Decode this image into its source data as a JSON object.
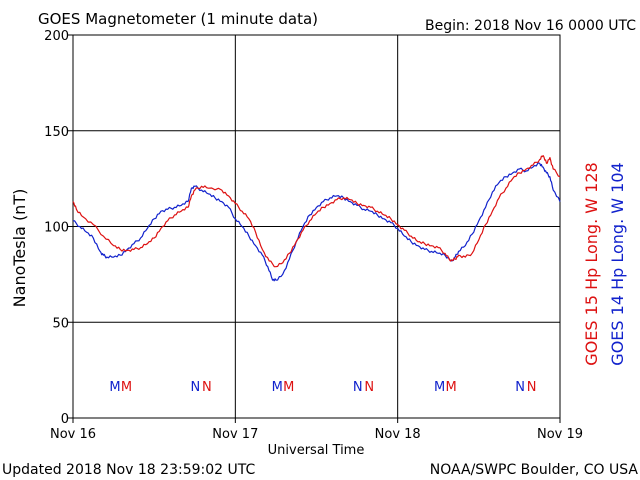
{
  "header": {
    "title": "GOES Magnetometer (1 minute data)",
    "begin": "Begin:  2018 Nov 16 0000 UTC"
  },
  "footer": {
    "updated": "Updated 2018 Nov 18 23:59:02 UTC",
    "credit": "NOAA/SWPC Boulder, CO USA"
  },
  "colors": {
    "goes15": "#dd1111",
    "goes14": "#1122cc",
    "grid": "#000000"
  },
  "chart_data": {
    "type": "line",
    "xlabel": "Universal Time",
    "ylabel": "NanoTesla (nT)",
    "xlim": [
      0,
      72
    ],
    "ylim": [
      0,
      200
    ],
    "x_unit_note": "hours from 2018 Nov 16 0000 UTC",
    "x_ticks": [
      {
        "x": 0,
        "label": "Nov 16"
      },
      {
        "x": 24,
        "label": "Nov 17"
      },
      {
        "x": 48,
        "label": "Nov 18"
      },
      {
        "x": 72,
        "label": "Nov 19"
      }
    ],
    "y_ticks": [
      0,
      50,
      100,
      150,
      200
    ],
    "grid": true,
    "legend": "right-vertical",
    "series": [
      {
        "name": "GOES 15 Hp  Long. W 128",
        "color": "#dd1111",
        "markers": [
          {
            "x": 7.9,
            "label": "M"
          },
          {
            "x": 19.8,
            "label": "N"
          },
          {
            "x": 31.9,
            "label": "M"
          },
          {
            "x": 43.8,
            "label": "N"
          },
          {
            "x": 55.9,
            "label": "M"
          },
          {
            "x": 67.8,
            "label": "N"
          }
        ],
        "points": [
          [
            0,
            113
          ],
          [
            0.5,
            109
          ],
          [
            1.5,
            105
          ],
          [
            3,
            101
          ],
          [
            4.5,
            95
          ],
          [
            6,
            90
          ],
          [
            7,
            88
          ],
          [
            8,
            87.5
          ],
          [
            9,
            88
          ],
          [
            10,
            89
          ],
          [
            11,
            91
          ],
          [
            12,
            94
          ],
          [
            13,
            99
          ],
          [
            14,
            103
          ],
          [
            15,
            106
          ],
          [
            16,
            108
          ],
          [
            17,
            110
          ],
          [
            17.5,
            116
          ],
          [
            18,
            119
          ],
          [
            19,
            121
          ],
          [
            20,
            120
          ],
          [
            22,
            119
          ],
          [
            23,
            116
          ],
          [
            24,
            112
          ],
          [
            25,
            108
          ],
          [
            26,
            104
          ],
          [
            27,
            97
          ],
          [
            28,
            88
          ],
          [
            29,
            82
          ],
          [
            30,
            79
          ],
          [
            31,
            81
          ],
          [
            32,
            86
          ],
          [
            33,
            92
          ],
          [
            34,
            98
          ],
          [
            35,
            103
          ],
          [
            36,
            107
          ],
          [
            37,
            110
          ],
          [
            38,
            112
          ],
          [
            39,
            114
          ],
          [
            40,
            115
          ],
          [
            41,
            114
          ],
          [
            42,
            112
          ],
          [
            43,
            111
          ],
          [
            44,
            110
          ],
          [
            45,
            108
          ],
          [
            46,
            106
          ],
          [
            47,
            104
          ],
          [
            48,
            101
          ],
          [
            49,
            98
          ],
          [
            50,
            95
          ],
          [
            51,
            92
          ],
          [
            52,
            91
          ],
          [
            53,
            90
          ],
          [
            54,
            89
          ],
          [
            55,
            86
          ],
          [
            55.8,
            82
          ],
          [
            56.5,
            83
          ],
          [
            57,
            85
          ],
          [
            58,
            84
          ],
          [
            59,
            86
          ],
          [
            60,
            93
          ],
          [
            61,
            101
          ],
          [
            62,
            108
          ],
          [
            63,
            115
          ],
          [
            64,
            120
          ],
          [
            65,
            125
          ],
          [
            66,
            128
          ],
          [
            67,
            130
          ],
          [
            68,
            132
          ],
          [
            69,
            135
          ],
          [
            69.5,
            137
          ],
          [
            70,
            133
          ],
          [
            70.5,
            136
          ],
          [
            71,
            130
          ],
          [
            72,
            126
          ]
        ]
      },
      {
        "name": "GOES 14 Hp  Long. W 104",
        "color": "#1122cc",
        "markers": [
          {
            "x": 6.2,
            "label": "M"
          },
          {
            "x": 18.1,
            "label": "N"
          },
          {
            "x": 30.2,
            "label": "M"
          },
          {
            "x": 42.1,
            "label": "N"
          },
          {
            "x": 54.2,
            "label": "M"
          },
          {
            "x": 66.1,
            "label": "N"
          }
        ],
        "points": [
          [
            0,
            103
          ],
          [
            1,
            100
          ],
          [
            2,
            97
          ],
          [
            3,
            94
          ],
          [
            4,
            87
          ],
          [
            4.5,
            85
          ],
          [
            5,
            84
          ],
          [
            6,
            84
          ],
          [
            7,
            85
          ],
          [
            8,
            88
          ],
          [
            9,
            91
          ],
          [
            10,
            94
          ],
          [
            11,
            99
          ],
          [
            12,
            104
          ],
          [
            13,
            108
          ],
          [
            14,
            109
          ],
          [
            15,
            110
          ],
          [
            16,
            111
          ],
          [
            17,
            113
          ],
          [
            17.5,
            120
          ],
          [
            18,
            121
          ],
          [
            19,
            119
          ],
          [
            20,
            117
          ],
          [
            21,
            115
          ],
          [
            22,
            113
          ],
          [
            23,
            110
          ],
          [
            24,
            104
          ],
          [
            25,
            100
          ],
          [
            26,
            95
          ],
          [
            27,
            90
          ],
          [
            28,
            85
          ],
          [
            28.8,
            79
          ],
          [
            29.5,
            72
          ],
          [
            30,
            72
          ],
          [
            31,
            75
          ],
          [
            32,
            83
          ],
          [
            33,
            92
          ],
          [
            34,
            100
          ],
          [
            35,
            106
          ],
          [
            36,
            110
          ],
          [
            37,
            113
          ],
          [
            38,
            115
          ],
          [
            39,
            116
          ],
          [
            40,
            115
          ],
          [
            41,
            113
          ],
          [
            42,
            111
          ],
          [
            43,
            109
          ],
          [
            44,
            108
          ],
          [
            45,
            106
          ],
          [
            46,
            104
          ],
          [
            47,
            102
          ],
          [
            48,
            99
          ],
          [
            49,
            95
          ],
          [
            50,
            92
          ],
          [
            51,
            90
          ],
          [
            52,
            88
          ],
          [
            53,
            87
          ],
          [
            54,
            86
          ],
          [
            55,
            85
          ],
          [
            56,
            82
          ],
          [
            56.5,
            84
          ],
          [
            57,
            87
          ],
          [
            58,
            90
          ],
          [
            59,
            96
          ],
          [
            60,
            103
          ],
          [
            61,
            110
          ],
          [
            62,
            118
          ],
          [
            63,
            123
          ],
          [
            64,
            126
          ],
          [
            65,
            128
          ],
          [
            66,
            130
          ],
          [
            67,
            129
          ],
          [
            68,
            131
          ],
          [
            69,
            133
          ],
          [
            69.5,
            131
          ],
          [
            70,
            128
          ],
          [
            70.5,
            126
          ],
          [
            71,
            119
          ],
          [
            72,
            113
          ]
        ]
      }
    ]
  }
}
